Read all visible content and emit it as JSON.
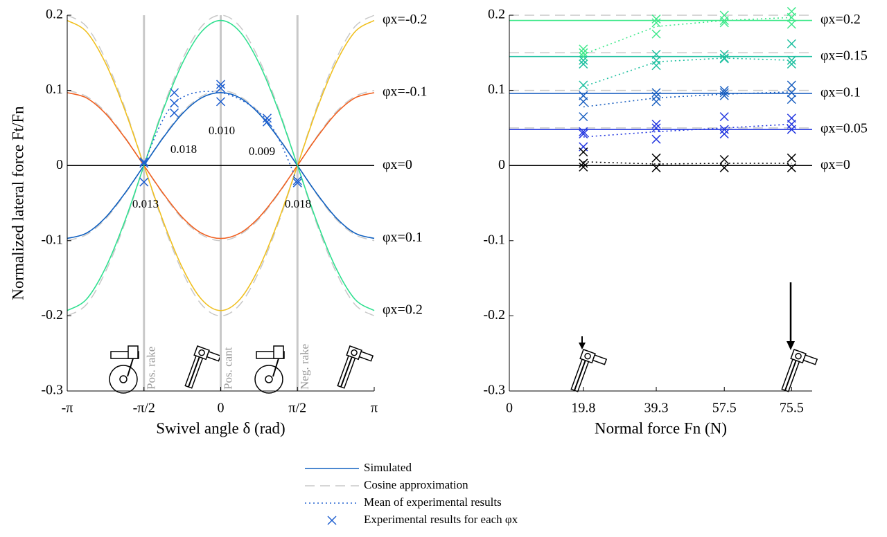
{
  "chart_data": [
    {
      "type": "line",
      "smooth": true,
      "xlabel": "Swivel angle δ (rad)",
      "ylabel": "Normalized lateral force Ft/Fn",
      "xlim": [
        -3.142,
        3.142
      ],
      "ylim": [
        -0.3,
        0.2
      ],
      "xticks": [
        {
          "value": -3.142,
          "label": "-π"
        },
        {
          "value": -1.571,
          "label": "-π/2"
        },
        0,
        {
          "value": 1.571,
          "label": "π/2"
        },
        {
          "value": 3.142,
          "label": "π"
        }
      ],
      "yticks": [
        -0.3,
        -0.2,
        -0.1,
        0,
        0.1,
        0.2
      ],
      "vlines": [
        {
          "value": -1.571,
          "label": "Pos. rake"
        },
        {
          "value": 0,
          "label": "Pos. cant"
        },
        {
          "value": 1.571,
          "label": "Neg. rake"
        }
      ],
      "annotations": [
        "0.013",
        "0.018",
        "0.010",
        "0.009",
        "0.018"
      ],
      "x": [
        -3.142,
        -2.749,
        -2.356,
        -1.963,
        -1.571,
        -1.178,
        -0.785,
        -0.393,
        0,
        0.393,
        0.785,
        1.178,
        1.571,
        1.963,
        2.356,
        2.749,
        3.142
      ],
      "series": [
        {
          "color": "#c8c8c8",
          "style": "dashed",
          "values": [
            -0.2,
            -0.185,
            -0.141,
            -0.077,
            0,
            0.077,
            0.141,
            0.185,
            0.2,
            0.185,
            0.141,
            0.077,
            0,
            -0.077,
            -0.141,
            -0.185,
            -0.2
          ]
        },
        {
          "color": "#c8c8c8",
          "style": "dashed",
          "values": [
            0.2,
            0.185,
            0.141,
            0.077,
            0,
            -0.077,
            -0.141,
            -0.185,
            -0.2,
            -0.185,
            -0.141,
            -0.077,
            0,
            0.077,
            0.141,
            0.185,
            0.2
          ]
        },
        {
          "color": "#c8c8c8",
          "style": "dashed",
          "values": [
            -0.1,
            -0.092,
            -0.071,
            -0.038,
            0,
            0.038,
            0.071,
            0.092,
            0.1,
            0.092,
            0.071,
            0.038,
            0,
            -0.038,
            -0.071,
            -0.092,
            -0.1
          ]
        },
        {
          "color": "#c8c8c8",
          "style": "dashed",
          "values": [
            0.1,
            0.092,
            0.071,
            0.038,
            0,
            -0.038,
            -0.071,
            -0.092,
            -0.1,
            -0.092,
            -0.071,
            -0.038,
            0,
            0.038,
            0.071,
            0.092,
            0.1
          ]
        },
        {
          "name": "φx=-0.2",
          "color": "#f0c020",
          "style": "solid",
          "values": [
            0.193,
            0.178,
            0.136,
            0.074,
            0,
            -0.074,
            -0.136,
            -0.178,
            -0.193,
            -0.178,
            -0.136,
            -0.074,
            0,
            0.074,
            0.136,
            0.178,
            0.193
          ]
        },
        {
          "name": "φx=-0.1",
          "color": "#f06020",
          "style": "solid",
          "values": [
            0.097,
            0.09,
            0.069,
            0.037,
            0,
            -0.037,
            -0.069,
            -0.09,
            -0.097,
            -0.09,
            -0.069,
            -0.037,
            0,
            0.037,
            0.069,
            0.09,
            0.097
          ]
        },
        {
          "name": "φx=0",
          "color": "#000000",
          "style": "solid",
          "x": [
            -3.142,
            3.142
          ],
          "values": [
            0,
            0
          ]
        },
        {
          "name": "φx=0.1",
          "color": "#1060c0",
          "style": "solid",
          "values": [
            -0.097,
            -0.09,
            -0.069,
            -0.037,
            0,
            0.037,
            0.069,
            0.09,
            0.097,
            0.09,
            0.069,
            0.037,
            0,
            -0.037,
            -0.069,
            -0.09,
            -0.097
          ]
        },
        {
          "name": "φx=0.2",
          "color": "#30e090",
          "style": "solid",
          "values": [
            -0.193,
            -0.178,
            -0.136,
            -0.074,
            0,
            0.074,
            0.136,
            0.178,
            0.193,
            0.178,
            0.136,
            0.074,
            0,
            -0.074,
            -0.136,
            -0.178,
            -0.193
          ]
        },
        {
          "color": "#2060d0",
          "style": "dotted",
          "x": [
            -1.571,
            -0.95,
            0,
            0.95,
            1.571
          ],
          "values": [
            0.003,
            0.083,
            0.097,
            0.06,
            -0.022
          ]
        },
        {
          "color": "#2060d0",
          "style": "markers",
          "x": [
            -1.571,
            -1.571,
            -1.571,
            -0.95,
            -0.95,
            -0.95,
            0,
            0,
            0,
            0.95,
            0.95,
            1.571,
            1.571
          ],
          "values": [
            0.005,
            0.003,
            -0.022,
            0.097,
            0.083,
            0.07,
            0.108,
            0.103,
            0.085,
            0.063,
            0.058,
            -0.02,
            -0.023
          ]
        }
      ]
    },
    {
      "type": "line",
      "smooth": false,
      "xlabel": "Normal force Fn (N)",
      "xlim": [
        0,
        81
      ],
      "ylim": [
        -0.3,
        0.2
      ],
      "xticks": [
        0,
        19.8,
        39.3,
        57.5,
        75.5
      ],
      "yticks": [
        -0.3,
        -0.2,
        -0.1,
        0,
        0.1,
        0.2
      ],
      "series": [
        {
          "color": "#c8c8c8",
          "style": "dashed",
          "x": [
            0,
            81
          ],
          "values": [
            0.2,
            0.2
          ]
        },
        {
          "color": "#c8c8c8",
          "style": "dashed",
          "x": [
            0,
            81
          ],
          "values": [
            0.15,
            0.15
          ]
        },
        {
          "color": "#c8c8c8",
          "style": "dashed",
          "x": [
            0,
            81
          ],
          "values": [
            0.1,
            0.1
          ]
        },
        {
          "color": "#c8c8c8",
          "style": "dashed",
          "x": [
            0,
            81
          ],
          "values": [
            0.05,
            0.05
          ]
        },
        {
          "name": "φx=0.2",
          "color": "#3ee88a",
          "style": "solid",
          "x": [
            0,
            81
          ],
          "values": [
            0.193,
            0.193
          ]
        },
        {
          "name": "φx=0.15",
          "color": "#1ec0a0",
          "style": "solid",
          "x": [
            0,
            81
          ],
          "values": [
            0.145,
            0.145
          ]
        },
        {
          "name": "φx=0.1",
          "color": "#1a5fc0",
          "style": "solid",
          "x": [
            0,
            81
          ],
          "values": [
            0.096,
            0.096
          ]
        },
        {
          "name": "φx=0.05",
          "color": "#2236e0",
          "style": "solid",
          "x": [
            0,
            81
          ],
          "values": [
            0.048,
            0.048
          ]
        },
        {
          "name": "φx=0",
          "color": "#000000",
          "style": "solid",
          "x": [
            0,
            81
          ],
          "values": [
            0,
            0
          ]
        },
        {
          "color": "#3ee88a",
          "style": "dotted",
          "x": [
            19.8,
            39.3,
            57.5,
            75.5
          ],
          "values": [
            0.148,
            0.185,
            0.193,
            0.197
          ]
        },
        {
          "color": "#1ec0a0",
          "style": "dotted",
          "x": [
            19.8,
            39.3,
            57.5,
            75.5
          ],
          "values": [
            0.105,
            0.138,
            0.143,
            0.14
          ]
        },
        {
          "color": "#1a5fc0",
          "style": "dotted",
          "x": [
            19.8,
            39.3,
            57.5,
            75.5
          ],
          "values": [
            0.078,
            0.09,
            0.095,
            0.098
          ]
        },
        {
          "color": "#2236e0",
          "style": "dotted",
          "x": [
            19.8,
            39.3,
            57.5,
            75.5
          ],
          "values": [
            0.038,
            0.045,
            0.05,
            0.055
          ]
        },
        {
          "color": "#000000",
          "style": "dotted",
          "x": [
            19.8,
            39.3,
            57.5,
            75.5
          ],
          "values": [
            0.005,
            0.002,
            0.003,
            0.003
          ]
        },
        {
          "color": "#3ee88a",
          "style": "markers",
          "x": [
            19.8,
            19.8,
            19.8,
            39.3,
            39.3,
            39.3,
            57.5,
            57.5,
            57.5,
            75.5,
            75.5,
            75.5
          ],
          "values": [
            0.155,
            0.15,
            0.145,
            0.195,
            0.19,
            0.175,
            0.2,
            0.193,
            0.19,
            0.205,
            0.197,
            0.188
          ]
        },
        {
          "color": "#1ec0a0",
          "style": "markers",
          "x": [
            19.8,
            19.8,
            19.8,
            39.3,
            39.3,
            39.3,
            57.5,
            57.5,
            57.5,
            75.5,
            75.5,
            75.5
          ],
          "values": [
            0.107,
            0.14,
            0.135,
            0.148,
            0.14,
            0.133,
            0.148,
            0.143,
            0.142,
            0.162,
            0.14,
            0.135
          ]
        },
        {
          "color": "#1a5fc0",
          "style": "markers",
          "x": [
            19.8,
            19.8,
            19.8,
            39.3,
            39.3,
            39.3,
            57.5,
            57.5,
            57.5,
            75.5,
            75.5,
            75.5
          ],
          "values": [
            0.093,
            0.085,
            0.065,
            0.097,
            0.092,
            0.085,
            0.1,
            0.097,
            0.093,
            0.107,
            0.097,
            0.088
          ]
        },
        {
          "color": "#2236e0",
          "style": "markers",
          "x": [
            19.8,
            19.8,
            19.8,
            39.3,
            39.3,
            39.3,
            57.5,
            57.5,
            57.5,
            75.5,
            75.5,
            75.5
          ],
          "values": [
            0.045,
            0.042,
            0.025,
            0.055,
            0.05,
            0.035,
            0.065,
            0.048,
            0.042,
            0.063,
            0.055,
            0.048
          ]
        },
        {
          "color": "#000000",
          "style": "markers",
          "x": [
            19.8,
            19.8,
            19.8,
            39.3,
            39.3,
            57.5,
            57.5,
            75.5,
            75.5
          ],
          "values": [
            0.018,
            0.003,
            -0.002,
            0.01,
            -0.003,
            0.008,
            -0.003,
            0.01,
            -0.003
          ]
        }
      ]
    }
  ],
  "legend": [
    {
      "label": "Simulated",
      "color": "#1060c0",
      "style": "solid"
    },
    {
      "label": "Cosine approximation",
      "color": "#c8c8c8",
      "style": "dashed"
    },
    {
      "label": "Mean of experimental results",
      "color": "#2060d0",
      "style": "dotted"
    },
    {
      "label": "Experimental results for each φx",
      "color": "#2060d0",
      "style": "markers"
    }
  ]
}
